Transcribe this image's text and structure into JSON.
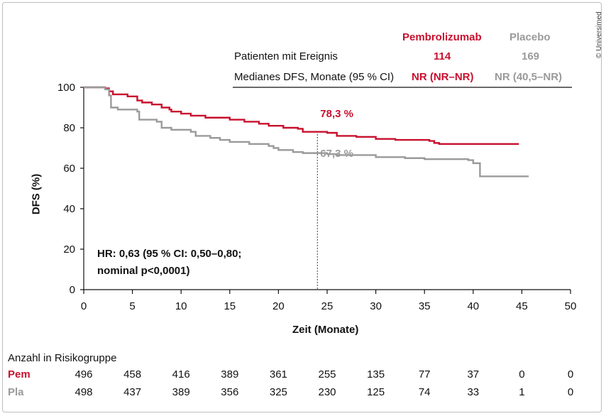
{
  "copyright": "© Universimed",
  "header": {
    "col_pem": "Pembrolizumab",
    "col_pla": "Placebo",
    "row1_label": "Patienten mit Ereignis",
    "row1_pem": "114",
    "row1_pla": "169",
    "row2_label": "Medianes DFS, Monate (95 % CI)",
    "row2_pem": "NR (NR–NR)",
    "row2_pla": "NR (40,5–NR)"
  },
  "hr_line1": "HR: 0,63 (95 % CI: 0,50–0,80;",
  "hr_line2": "nominal p<0,0001)",
  "colors": {
    "pem": "#c8102e",
    "pla": "#9a9a9a",
    "axis": "#111111"
  },
  "chart_data": {
    "type": "line",
    "xlabel": "Zeit (Monate)",
    "ylabel": "DFS (%)",
    "xlim": [
      0,
      50
    ],
    "ylim": [
      0,
      100
    ],
    "xticks": [
      0,
      5,
      10,
      15,
      20,
      25,
      30,
      35,
      40,
      45,
      50
    ],
    "yticks": [
      0,
      20,
      40,
      60,
      80,
      100
    ],
    "grid": false,
    "series": [
      {
        "name": "Pembrolizumab",
        "step": true,
        "points": [
          [
            0,
            100
          ],
          [
            2.2,
            99.5
          ],
          [
            2.6,
            98
          ],
          [
            3,
            96.5
          ],
          [
            4.5,
            95.5
          ],
          [
            5.5,
            93.5
          ],
          [
            6,
            92.5
          ],
          [
            7,
            91.5
          ],
          [
            8,
            90
          ],
          [
            8.8,
            89
          ],
          [
            9,
            88
          ],
          [
            10,
            87
          ],
          [
            11,
            86
          ],
          [
            12.5,
            85
          ],
          [
            15,
            84
          ],
          [
            16.5,
            83
          ],
          [
            18,
            82
          ],
          [
            19,
            81
          ],
          [
            20.5,
            80
          ],
          [
            22,
            79.5
          ],
          [
            22.5,
            78
          ],
          [
            25,
            77.5
          ],
          [
            26,
            76
          ],
          [
            28,
            75.5
          ],
          [
            30,
            74.5
          ],
          [
            32,
            74
          ],
          [
            35.5,
            73.5
          ],
          [
            36,
            72.5
          ],
          [
            36.5,
            72
          ],
          [
            40,
            72
          ],
          [
            44.7,
            72
          ]
        ]
      },
      {
        "name": "Placebo",
        "step": true,
        "points": [
          [
            0,
            100
          ],
          [
            2.2,
            99
          ],
          [
            2.6,
            96
          ],
          [
            2.8,
            90
          ],
          [
            3.5,
            89
          ],
          [
            5.5,
            88
          ],
          [
            5.7,
            84
          ],
          [
            7.5,
            83
          ],
          [
            8,
            80
          ],
          [
            9,
            79
          ],
          [
            11,
            78
          ],
          [
            11.5,
            76
          ],
          [
            13,
            75
          ],
          [
            14,
            74
          ],
          [
            15,
            73
          ],
          [
            17,
            72
          ],
          [
            19,
            71
          ],
          [
            19.5,
            70
          ],
          [
            20,
            69
          ],
          [
            21.5,
            68
          ],
          [
            22.5,
            67.5
          ],
          [
            25,
            67
          ],
          [
            26,
            66.5
          ],
          [
            30,
            65.5
          ],
          [
            33,
            65
          ],
          [
            35,
            64.5
          ],
          [
            39.5,
            64
          ],
          [
            40,
            62.5
          ],
          [
            40.7,
            56
          ],
          [
            45.7,
            56
          ]
        ]
      }
    ],
    "reference_x": 24,
    "annotations": [
      {
        "text": "78,3 %",
        "series": "Pembrolizumab",
        "x": 24,
        "y": 78.3
      },
      {
        "text": "67,3 %",
        "series": "Placebo",
        "x": 24,
        "y": 67.3
      }
    ]
  },
  "risk_table": {
    "title": "Anzahl in Risikogruppe",
    "times": [
      0,
      5,
      10,
      15,
      20,
      25,
      30,
      35,
      40,
      45,
      50
    ],
    "rows": [
      {
        "label": "Pem",
        "values": [
          "496",
          "458",
          "416",
          "389",
          "361",
          "255",
          "135",
          "77",
          "37",
          "0",
          "0"
        ]
      },
      {
        "label": "Pla",
        "values": [
          "498",
          "437",
          "389",
          "356",
          "325",
          "230",
          "125",
          "74",
          "33",
          "1",
          "0"
        ]
      }
    ]
  }
}
